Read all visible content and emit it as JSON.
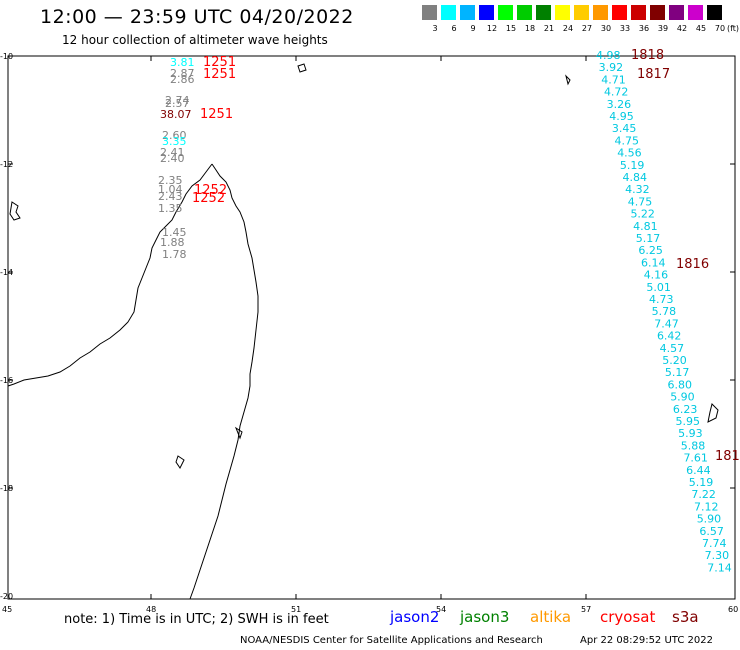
{
  "title": "12:00 — 23:59 UTC 04/20/2022",
  "subtitle": "12 hour collection of altimeter wave heights",
  "scale": {
    "labels": [
      "3",
      "6",
      "9",
      "12",
      "15",
      "18",
      "21",
      "24",
      "27",
      "30",
      "33",
      "36",
      "39",
      "42",
      "45",
      "70"
    ],
    "colors": [
      "#808080",
      "#00ffff",
      "#00b4ff",
      "#0000ff",
      "#00ff00",
      "#00cc00",
      "#008000",
      "#ffff00",
      "#ffcc00",
      "#ff9900",
      "#ff0000",
      "#cc0000",
      "#800000",
      "#800080",
      "#cc00cc",
      "#000000"
    ],
    "unit": "(ft)"
  },
  "axes": {
    "lon_labels": [
      "45",
      "48",
      "51",
      "54",
      "57",
      "60"
    ],
    "lat_labels": [
      "-10",
      "-12",
      "-14",
      "-16",
      "-18",
      "-20"
    ]
  },
  "west_track": {
    "heights": [
      {
        "t": "3.81",
        "c": "#00ffff"
      },
      {
        "t": "2.87",
        "c": "#808080"
      },
      {
        "t": "2.86",
        "c": "#808080"
      },
      {
        "t": "2.74",
        "c": "#808080"
      },
      {
        "t": "2.57",
        "c": "#808080"
      },
      {
        "t": "38.07",
        "c": "#800000"
      },
      {
        "t": "2.60",
        "c": "#808080"
      },
      {
        "t": "3.35",
        "c": "#00ffff"
      },
      {
        "t": "2.41",
        "c": "#808080"
      },
      {
        "t": "2.40",
        "c": "#808080"
      },
      {
        "t": "2.35",
        "c": "#808080"
      },
      {
        "t": "1.04",
        "c": "#808080"
      },
      {
        "t": "2.43",
        "c": "#808080"
      },
      {
        "t": "1.35",
        "c": "#808080"
      },
      {
        "t": "1.45",
        "c": "#808080"
      },
      {
        "t": "1.88",
        "c": "#808080"
      },
      {
        "t": "1.78",
        "c": "#808080"
      }
    ],
    "times": [
      {
        "t": "1251",
        "c": "#ff0000"
      },
      {
        "t": "1251",
        "c": "#ff0000"
      },
      {
        "t": "1251",
        "c": "#ff0000"
      },
      {
        "t": "1252",
        "c": "#ff0000"
      },
      {
        "t": "1252",
        "c": "#ff0000"
      }
    ]
  },
  "east_track": {
    "heights": [
      "4.98",
      "3.92",
      "4.71",
      "4.72",
      "3.26",
      "4.95",
      "3.45",
      "4.75",
      "4.56",
      "5.19",
      "4.84",
      "4.32",
      "4.75",
      "5.22",
      "4.81",
      "5.17",
      "6.25",
      "6.14",
      "4.16",
      "5.01",
      "4.73",
      "5.78",
      "7.47",
      "6.42",
      "4.57",
      "5.20",
      "5.17",
      "6.80",
      "5.90",
      "6.23",
      "5.95",
      "5.93",
      "5.88",
      "7.61",
      "6.44",
      "5.19",
      "7.22",
      "7.12",
      "5.90",
      "6.57",
      "7.74",
      "7.30",
      "7.14"
    ],
    "color": "#00c8e0",
    "times": [
      {
        "t": "1818",
        "c": "#800000"
      },
      {
        "t": "1817",
        "c": "#800000"
      },
      {
        "t": "1816",
        "c": "#800000"
      },
      {
        "t": "181",
        "c": "#800000"
      }
    ]
  },
  "footer": {
    "note": "note:  1) Time is in UTC; 2) SWH is in feet",
    "satellites": [
      {
        "name": "jason2",
        "color": "#0000ff"
      },
      {
        "name": "jason3",
        "color": "#008000"
      },
      {
        "name": "altika",
        "color": "#ff9900"
      },
      {
        "name": "cryosat",
        "color": "#ff0000"
      },
      {
        "name": "s3a",
        "color": "#800000"
      }
    ],
    "credit": "NOAA/NESDIS Center for Satellite Applications and Research",
    "timestamp": "Apr 22 08:29:52 UTC 2022"
  }
}
